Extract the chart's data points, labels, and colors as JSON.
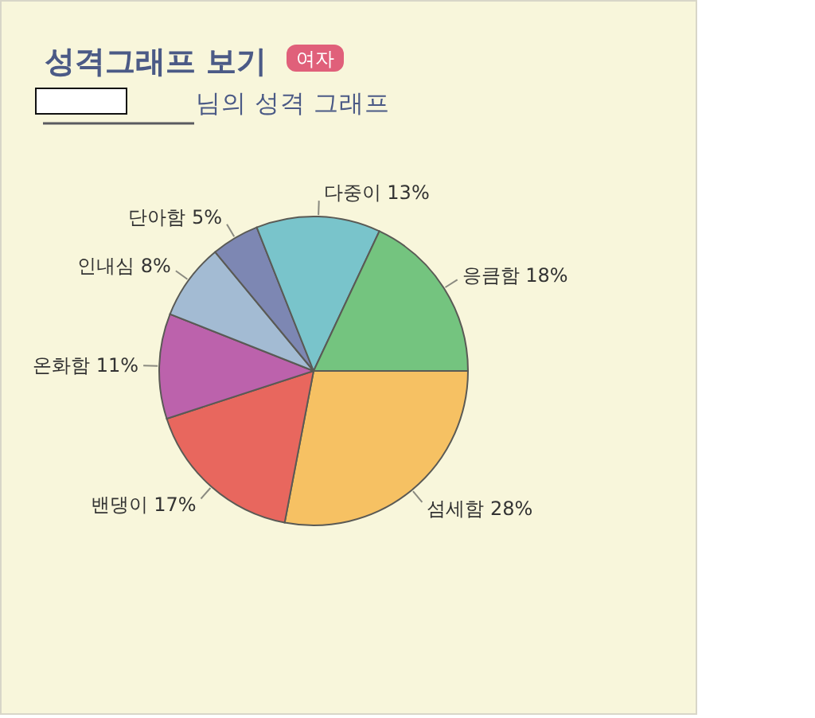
{
  "chart_data": {
    "type": "pie",
    "title": "성격그래프 보기",
    "subtitle": "님의 성격 그래프",
    "annotations": [
      "여자"
    ],
    "categories": [
      "섬세함",
      "밴댕이",
      "온화함",
      "인내심",
      "단아함",
      "다중이",
      "응큼함"
    ],
    "values": [
      28,
      17,
      11,
      8,
      5,
      13,
      18
    ],
    "value_labels": [
      "28%",
      "17%",
      "11%",
      "8%",
      "5%",
      "13%",
      "18%"
    ],
    "colors": [
      "#f6c163",
      "#e8675e",
      "#bc62ac",
      "#a3bbd3",
      "#7d87b3",
      "#79c4cb",
      "#74c47f"
    ]
  }
}
